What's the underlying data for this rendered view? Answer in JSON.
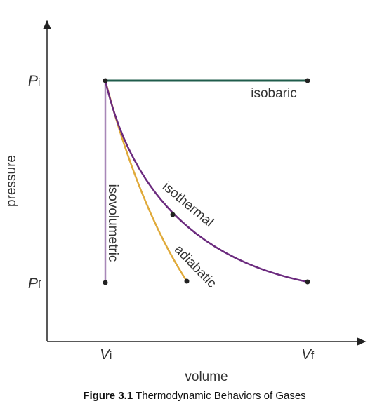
{
  "axes": {
    "y_label": "pressure",
    "x_label": "volume"
  },
  "ticks": {
    "p_initial": {
      "symbol": "P",
      "subscript": "i"
    },
    "p_final": {
      "symbol": "P",
      "subscript": "f"
    },
    "v_initial": {
      "symbol": "V",
      "subscript": "i"
    },
    "v_final": {
      "symbol": "V",
      "subscript": "f"
    }
  },
  "processes": {
    "isobaric": "isobaric",
    "isothermal": "isothermal",
    "adiabatic": "adiabatic",
    "isovolumetric": "isovolumetric"
  },
  "caption": {
    "label": "Figure 3.1",
    "text": "Thermodynamic Behaviors of Gases"
  }
}
